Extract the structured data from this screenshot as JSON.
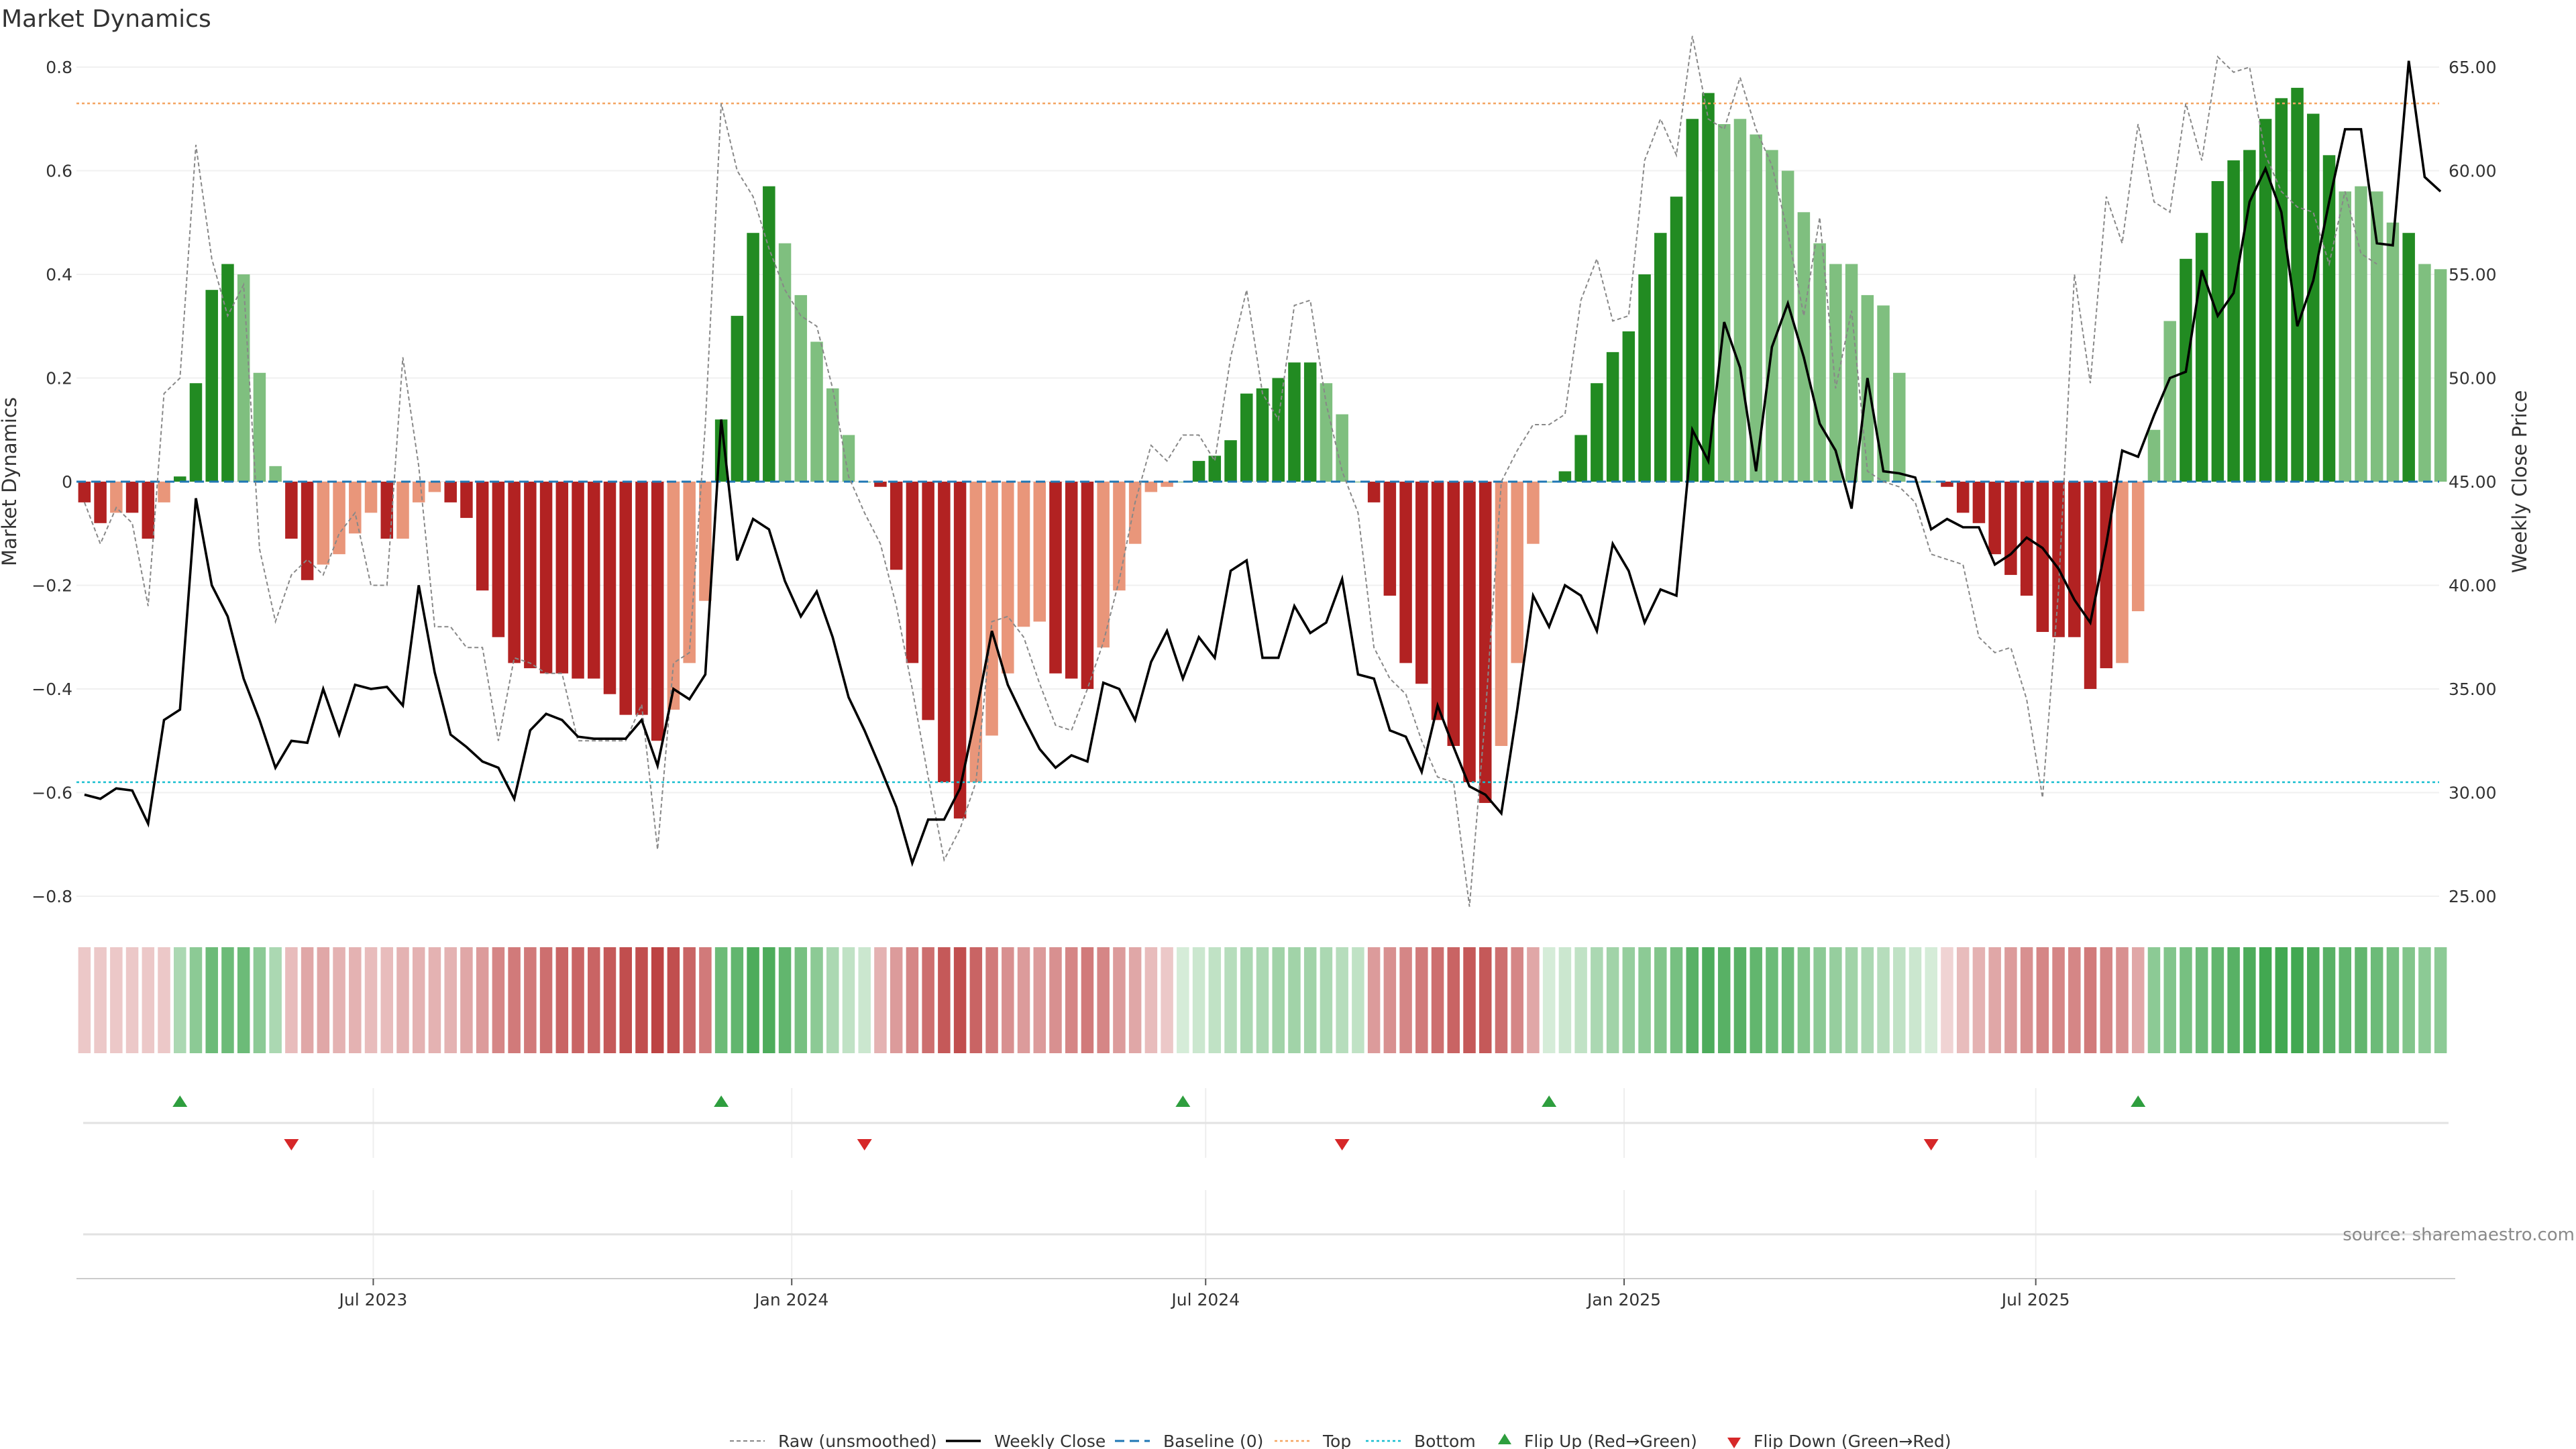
{
  "chart_data": {
    "type": "bar",
    "title": "Market Dynamics",
    "ylabel_left": "Market Dynamics",
    "ylabel_right": "Weekly Close Price",
    "ylim_left": [
      -0.8,
      0.8
    ],
    "ylim_right": [
      25.0,
      65.0
    ],
    "yticks_left": [
      "0.8",
      "0.6",
      "0.4",
      "0.2",
      "0",
      "−0.2",
      "−0.4",
      "−0.6",
      "−0.8"
    ],
    "yticks_right": [
      "65.00",
      "60.00",
      "55.00",
      "50.00",
      "45.00",
      "40.00",
      "35.00",
      "30.00",
      "25.00"
    ],
    "xticks": [
      "Jul 2023",
      "Jan 2024",
      "Jul 2024",
      "Jan 2025",
      "Jul 2025"
    ],
    "top_level": 0.73,
    "bottom_level": -0.58,
    "baseline": 0,
    "grid": true,
    "legend_position": "bottom-center",
    "source_text": "source: sharemaestro.com",
    "colors": {
      "strong_green": "#228B22",
      "light_green": "#7FBF7F",
      "strong_red": "#B22222",
      "light_red": "#E9967A",
      "close_line": "#000000",
      "raw_line": "#888888",
      "baseline": "#1f77b4",
      "top": "#F4A460",
      "bottom": "#17BECF",
      "flip_up": "#2E9E3E",
      "flip_down": "#D62728"
    },
    "series": [
      {
        "name": "Market Dynamics",
        "values": [
          -0.04,
          -0.08,
          -0.06,
          -0.06,
          -0.11,
          -0.04,
          0.01,
          0.19,
          0.37,
          0.42,
          0.4,
          0.21,
          0.03,
          -0.11,
          -0.19,
          -0.16,
          -0.14,
          -0.1,
          -0.06,
          -0.11,
          -0.11,
          -0.04,
          -0.02,
          -0.04,
          -0.07,
          -0.21,
          -0.3,
          -0.35,
          -0.36,
          -0.37,
          -0.37,
          -0.38,
          -0.38,
          -0.41,
          -0.45,
          -0.45,
          -0.5,
          -0.44,
          -0.35,
          -0.23,
          0.12,
          0.32,
          0.48,
          0.57,
          0.46,
          0.36,
          0.27,
          0.18,
          0.09,
          0.0,
          -0.01,
          -0.17,
          -0.35,
          -0.46,
          -0.58,
          -0.65,
          -0.58,
          -0.49,
          -0.37,
          -0.28,
          -0.27,
          -0.37,
          -0.38,
          -0.4,
          -0.32,
          -0.21,
          -0.12,
          -0.02,
          -0.01,
          0.0,
          0.04,
          0.05,
          0.08,
          0.17,
          0.18,
          0.2,
          0.23,
          0.23,
          0.19,
          0.13,
          0.0,
          -0.04,
          -0.22,
          -0.35,
          -0.39,
          -0.46,
          -0.51,
          -0.58,
          -0.62,
          -0.51,
          -0.35,
          -0.12,
          0.0,
          0.02,
          0.09,
          0.19,
          0.25,
          0.29,
          0.4,
          0.48,
          0.55,
          0.7,
          0.75,
          0.69,
          0.7,
          0.67,
          0.64,
          0.6,
          0.52,
          0.46,
          0.42,
          0.42,
          0.36,
          0.34,
          0.21,
          0.0,
          0.0,
          -0.01,
          -0.06,
          -0.08,
          -0.14,
          -0.18,
          -0.22,
          -0.29,
          -0.3,
          -0.3,
          -0.4,
          -0.36,
          -0.35,
          -0.25,
          0.1,
          0.31,
          0.43,
          0.48,
          0.58,
          0.62,
          0.64,
          0.7,
          0.74,
          0.76,
          0.71,
          0.63,
          0.56,
          0.57,
          0.56,
          0.5,
          0.48,
          0.42,
          0.41
        ]
      },
      {
        "name": "Raw (unsmoothed)",
        "values": [
          -0.04,
          -0.12,
          -0.05,
          -0.08,
          -0.24,
          0.17,
          0.2,
          0.65,
          0.43,
          0.32,
          0.38,
          -0.13,
          -0.27,
          -0.18,
          -0.15,
          -0.18,
          -0.1,
          -0.06,
          -0.2,
          -0.2,
          0.24,
          0.03,
          -0.28,
          -0.28,
          -0.32,
          -0.32,
          -0.5,
          -0.34,
          -0.35,
          -0.37,
          -0.37,
          -0.5,
          -0.5,
          -0.5,
          -0.5,
          -0.43,
          -0.71,
          -0.35,
          -0.33,
          0.11,
          0.73,
          0.6,
          0.55,
          0.45,
          0.37,
          0.32,
          0.3,
          0.18,
          0.01,
          -0.06,
          -0.12,
          -0.24,
          -0.4,
          -0.57,
          -0.73,
          -0.67,
          -0.58,
          -0.27,
          -0.26,
          -0.3,
          -0.39,
          -0.47,
          -0.48,
          -0.4,
          -0.31,
          -0.19,
          -0.04,
          0.07,
          0.04,
          0.09,
          0.09,
          0.04,
          0.24,
          0.37,
          0.17,
          0.12,
          0.34,
          0.35,
          0.15,
          0.02,
          -0.06,
          -0.32,
          -0.38,
          -0.41,
          -0.5,
          -0.57,
          -0.58,
          -0.82,
          -0.45,
          0.0,
          0.06,
          0.11,
          0.11,
          0.13,
          0.35,
          0.43,
          0.31,
          0.32,
          0.62,
          0.7,
          0.63,
          0.86,
          0.7,
          0.68,
          0.78,
          0.68,
          0.61,
          0.48,
          0.32,
          0.51,
          0.18,
          0.33,
          0.02,
          0.0,
          -0.01,
          -0.04,
          -0.14,
          -0.15,
          -0.16,
          -0.3,
          -0.33,
          -0.32,
          -0.42,
          -0.61,
          -0.21,
          0.4,
          0.19,
          0.55,
          0.46,
          0.69,
          0.54,
          0.52,
          0.73,
          0.62,
          0.82,
          0.79,
          0.8,
          0.63,
          0.56,
          0.53,
          0.52,
          0.42,
          0.56,
          0.44,
          0.42
        ]
      },
      {
        "name": "Weekly Close",
        "values": [
          29.9,
          29.7,
          30.2,
          30.1,
          28.5,
          33.5,
          34.0,
          44.2,
          40.0,
          38.5,
          35.5,
          33.5,
          31.2,
          32.5,
          32.4,
          35.0,
          32.8,
          35.2,
          35.0,
          35.1,
          34.2,
          40.0,
          35.8,
          32.8,
          32.2,
          31.5,
          31.2,
          29.7,
          33.0,
          33.8,
          33.5,
          32.7,
          32.6,
          32.6,
          32.6,
          33.5,
          31.3,
          35.0,
          34.5,
          35.7,
          48.0,
          41.2,
          43.2,
          42.7,
          40.2,
          38.5,
          39.7,
          37.5,
          34.6,
          33.0,
          31.2,
          29.3,
          26.6,
          28.7,
          28.7,
          30.2,
          33.8,
          37.8,
          35.2,
          33.6,
          32.1,
          31.2,
          31.8,
          31.5,
          35.3,
          35.0,
          33.5,
          36.3,
          37.8,
          35.5,
          37.5,
          36.5,
          40.7,
          41.2,
          36.5,
          36.5,
          39.0,
          37.7,
          38.2,
          40.3,
          35.7,
          35.5,
          33.0,
          32.7,
          31.0,
          34.2,
          32.2,
          30.3,
          29.9,
          29.0,
          34.0,
          39.5,
          38.0,
          40.0,
          39.5,
          37.8,
          42.0,
          40.7,
          38.2,
          39.8,
          39.5,
          47.5,
          46.0,
          52.7,
          50.5,
          45.5,
          51.5,
          53.6,
          51.0,
          47.8,
          46.5,
          43.7,
          50.0,
          45.5,
          45.4,
          45.2,
          42.7,
          43.2,
          42.8,
          42.8,
          41.0,
          41.5,
          42.3,
          41.8,
          40.8,
          39.3,
          38.2,
          42.0,
          46.5,
          46.2,
          48.2,
          50.0,
          50.3,
          55.2,
          53.0,
          54.1,
          58.5,
          60.1,
          58.0,
          52.5,
          54.7,
          58.5,
          62.0,
          62.0,
          56.5,
          56.4,
          65.3,
          59.7,
          59.0
        ]
      }
    ],
    "bar_shades": [
      "strong",
      "strong",
      "light",
      "strong",
      "strong",
      "light",
      "strong",
      "strong",
      "strong",
      "strong",
      "light",
      "light",
      "light",
      "strong",
      "strong",
      "light",
      "light",
      "light",
      "light",
      "strong",
      "light",
      "light",
      "light",
      "strong",
      "strong",
      "strong",
      "strong",
      "strong",
      "strong",
      "strong",
      "strong",
      "strong",
      "strong",
      "strong",
      "strong",
      "strong",
      "strong",
      "light",
      "light",
      "light",
      "strong",
      "strong",
      "strong",
      "strong",
      "light",
      "light",
      "light",
      "light",
      "light",
      "light",
      "strong",
      "strong",
      "strong",
      "strong",
      "strong",
      "strong",
      "light",
      "light",
      "light",
      "light",
      "light",
      "strong",
      "strong",
      "strong",
      "light",
      "light",
      "light",
      "light",
      "light",
      "light",
      "strong",
      "strong",
      "strong",
      "strong",
      "strong",
      "strong",
      "strong",
      "strong",
      "light",
      "light",
      "light",
      "strong",
      "strong",
      "strong",
      "strong",
      "strong",
      "strong",
      "strong",
      "strong",
      "light",
      "light",
      "light",
      "light",
      "strong",
      "strong",
      "strong",
      "strong",
      "strong",
      "strong",
      "strong",
      "strong",
      "strong",
      "strong",
      "light",
      "light",
      "light",
      "light",
      "light",
      "light",
      "light",
      "light",
      "light",
      "light",
      "light",
      "light",
      "light",
      "light",
      "strong",
      "strong",
      "strong",
      "strong",
      "strong",
      "strong",
      "strong",
      "strong",
      "strong",
      "strong",
      "strong",
      "light",
      "light",
      "light",
      "light",
      "strong",
      "strong",
      "strong",
      "strong",
      "strong",
      "strong",
      "strong",
      "strong",
      "strong",
      "strong",
      "light",
      "light",
      "light",
      "light",
      "strong",
      "light",
      "light",
      "light",
      "light"
    ],
    "flips_up": [
      6,
      40,
      69,
      92,
      129
    ],
    "flips_down": [
      13,
      49,
      79,
      116
    ],
    "heat_strength": [
      0.25,
      0.25,
      0.25,
      0.25,
      0.25,
      0.25,
      0.4,
      0.55,
      0.7,
      0.7,
      0.7,
      0.55,
      0.4,
      0.3,
      0.4,
      0.4,
      0.35,
      0.35,
      0.3,
      0.3,
      0.35,
      0.35,
      0.35,
      0.35,
      0.4,
      0.45,
      0.55,
      0.6,
      0.6,
      0.65,
      0.7,
      0.7,
      0.7,
      0.75,
      0.8,
      0.8,
      0.85,
      0.8,
      0.7,
      0.6,
      0.7,
      0.75,
      0.85,
      0.85,
      0.75,
      0.65,
      0.55,
      0.4,
      0.3,
      0.25,
      0.35,
      0.45,
      0.55,
      0.65,
      0.75,
      0.8,
      0.7,
      0.6,
      0.5,
      0.45,
      0.45,
      0.5,
      0.55,
      0.6,
      0.55,
      0.45,
      0.4,
      0.3,
      0.25,
      0.2,
      0.25,
      0.3,
      0.35,
      0.4,
      0.4,
      0.45,
      0.45,
      0.45,
      0.4,
      0.35,
      0.3,
      0.45,
      0.5,
      0.55,
      0.6,
      0.65,
      0.7,
      0.75,
      0.75,
      0.65,
      0.55,
      0.4,
      0.2,
      0.25,
      0.3,
      0.4,
      0.45,
      0.5,
      0.55,
      0.6,
      0.65,
      0.8,
      0.85,
      0.8,
      0.8,
      0.75,
      0.7,
      0.7,
      0.6,
      0.55,
      0.5,
      0.45,
      0.4,
      0.35,
      0.3,
      0.25,
      0.2,
      0.2,
      0.3,
      0.35,
      0.4,
      0.45,
      0.5,
      0.55,
      0.55,
      0.55,
      0.6,
      0.55,
      0.5,
      0.4,
      0.55,
      0.6,
      0.65,
      0.7,
      0.75,
      0.8,
      0.85,
      0.9,
      0.9,
      0.9,
      0.85,
      0.8,
      0.75,
      0.75,
      0.7,
      0.65,
      0.6,
      0.55,
      0.55
    ]
  },
  "legend": {
    "raw": "Raw (unsmoothed)",
    "close": "Weekly Close",
    "baseline": "Baseline (0)",
    "top": "Top",
    "bottom": "Bottom",
    "flip_up": "Flip Up (Red→Green)",
    "flip_down": "Flip Down (Green→Red)"
  }
}
